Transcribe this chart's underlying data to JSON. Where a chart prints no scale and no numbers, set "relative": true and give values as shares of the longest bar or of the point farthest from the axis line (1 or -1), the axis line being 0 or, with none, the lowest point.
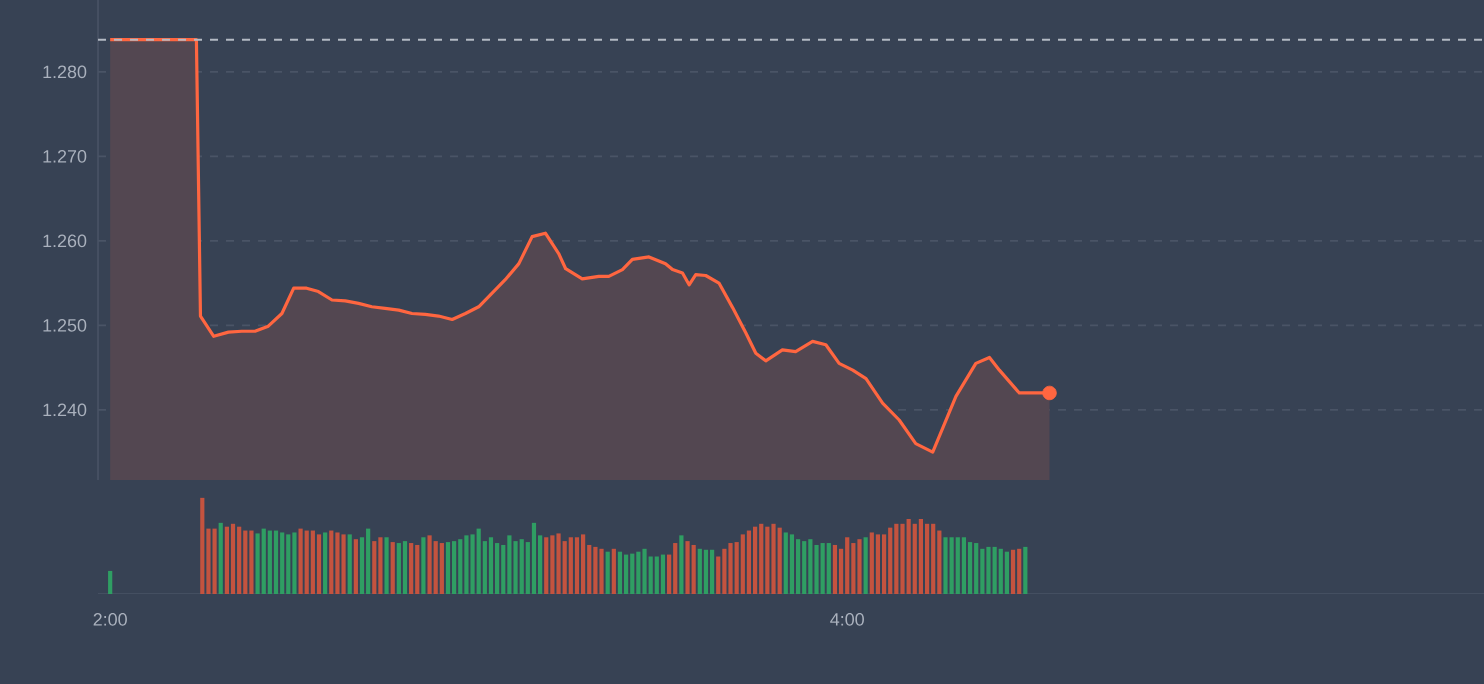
{
  "chart_data": [
    {
      "type": "line",
      "xlim": [
        1.967,
        5.728
      ],
      "ylim": [
        1.2317,
        1.2885
      ],
      "yticks": [
        {
          "value": 1.24,
          "label": "1.240"
        },
        {
          "value": 1.25,
          "label": "1.250"
        },
        {
          "value": 1.26,
          "label": "1.260"
        },
        {
          "value": 1.27,
          "label": "1.270"
        },
        {
          "value": 1.28,
          "label": "1.280"
        }
      ],
      "grid": "y",
      "tick_labels": "y",
      "ref_lines": [
        {
          "axis": "y",
          "value": 1.2838,
          "color": "#b4bac4",
          "line_style": "dashed"
        }
      ],
      "series": [
        {
          "type": "area",
          "color": "#ff6640",
          "x": [
            2.0,
            2.234,
            2.245,
            2.281,
            2.321,
            2.357,
            2.393,
            2.429,
            2.466,
            2.498,
            2.533,
            2.565,
            2.602,
            2.638,
            2.674,
            2.71,
            2.746,
            2.783,
            2.819,
            2.855,
            2.891,
            2.928,
            2.964,
            3.0,
            3.036,
            3.072,
            3.109,
            3.145,
            3.181,
            3.217,
            3.236,
            3.281,
            3.326,
            3.353,
            3.39,
            3.417,
            3.462,
            3.507,
            3.526,
            3.553,
            3.571,
            3.589,
            3.616,
            3.652,
            3.689,
            3.725,
            3.752,
            3.779,
            3.824,
            3.86,
            3.906,
            3.942,
            3.978,
            4.015,
            4.051,
            4.096,
            4.141,
            4.186,
            4.232,
            4.295,
            4.349,
            4.386,
            4.413,
            4.467,
            4.549
          ],
          "values": [
            1.2838,
            1.2838,
            1.2511,
            1.2487,
            1.2492,
            1.2493,
            1.2493,
            1.2499,
            1.2514,
            1.2544,
            1.2544,
            1.254,
            1.253,
            1.2529,
            1.2526,
            1.2522,
            1.252,
            1.2518,
            1.2514,
            1.2513,
            1.2511,
            1.2507,
            1.2514,
            1.2522,
            1.2538,
            1.2554,
            1.2573,
            1.2605,
            1.2609,
            1.2585,
            1.2567,
            1.2555,
            1.2558,
            1.2558,
            1.2566,
            1.2578,
            1.2581,
            1.2573,
            1.2566,
            1.2562,
            1.2548,
            1.256,
            1.2559,
            1.255,
            1.2521,
            1.2491,
            1.2467,
            1.2458,
            1.2471,
            1.2469,
            1.2481,
            1.2477,
            1.2455,
            1.2447,
            1.2437,
            1.2408,
            1.2388,
            1.236,
            1.235,
            1.2416,
            1.2455,
            1.2462,
            1.2447,
            1.242,
            1.242
          ]
        },
        {
          "type": "scatter",
          "color": "#ff6640",
          "x": [
            4.549
          ],
          "values": [
            1.242
          ]
        }
      ]
    },
    {
      "type": "bar",
      "relative": true,
      "xlim": [
        1.967,
        5.728
      ],
      "xticks": [
        {
          "value": 2,
          "label": "2:00"
        },
        {
          "value": 4,
          "label": "4:00"
        }
      ],
      "tick_labels": "x",
      "x": [
        2.0,
        2.25,
        2.2667,
        2.2833,
        2.3,
        2.3167,
        2.3333,
        2.35,
        2.3667,
        2.3833,
        2.4,
        2.4167,
        2.4333,
        2.45,
        2.4667,
        2.4833,
        2.5,
        2.5167,
        2.5333,
        2.55,
        2.5667,
        2.5833,
        2.6,
        2.6167,
        2.6333,
        2.65,
        2.6667,
        2.6833,
        2.7,
        2.7167,
        2.7333,
        2.75,
        2.7667,
        2.7833,
        2.8,
        2.8167,
        2.8333,
        2.85,
        2.8667,
        2.8833,
        2.9,
        2.9167,
        2.9333,
        2.95,
        2.9667,
        2.9833,
        3.0,
        3.0167,
        3.0333,
        3.05,
        3.0667,
        3.0833,
        3.1,
        3.1167,
        3.1333,
        3.15,
        3.1667,
        3.1833,
        3.2,
        3.2167,
        3.2333,
        3.25,
        3.2667,
        3.2833,
        3.3,
        3.3167,
        3.3333,
        3.35,
        3.3667,
        3.3833,
        3.4,
        3.4167,
        3.4333,
        3.45,
        3.4667,
        3.4833,
        3.5,
        3.5167,
        3.5333,
        3.55,
        3.5667,
        3.5833,
        3.6,
        3.6167,
        3.6333,
        3.65,
        3.6667,
        3.6833,
        3.7,
        3.7167,
        3.7333,
        3.75,
        3.7667,
        3.7833,
        3.8,
        3.8167,
        3.8333,
        3.85,
        3.8667,
        3.8833,
        3.9,
        3.9167,
        3.9333,
        3.95,
        3.9667,
        3.9833,
        4.0,
        4.0167,
        4.0333,
        4.05,
        4.0667,
        4.0833,
        4.1,
        4.1167,
        4.1333,
        4.15,
        4.1667,
        4.1833,
        4.2,
        4.2167,
        4.2333,
        4.25,
        4.2667,
        4.2833,
        4.3,
        4.3167,
        4.3333,
        4.35,
        4.3667,
        4.3833,
        4.4,
        4.4167,
        4.4333,
        4.45,
        4.4667,
        4.4833
      ],
      "values": [
        0.24,
        1.0,
        0.68,
        0.68,
        0.74,
        0.7,
        0.73,
        0.7,
        0.66,
        0.66,
        0.63,
        0.68,
        0.66,
        0.66,
        0.64,
        0.62,
        0.64,
        0.68,
        0.66,
        0.66,
        0.62,
        0.64,
        0.66,
        0.64,
        0.62,
        0.62,
        0.57,
        0.59,
        0.68,
        0.55,
        0.59,
        0.59,
        0.54,
        0.53,
        0.55,
        0.53,
        0.51,
        0.59,
        0.61,
        0.55,
        0.53,
        0.54,
        0.55,
        0.57,
        0.61,
        0.62,
        0.68,
        0.55,
        0.59,
        0.53,
        0.51,
        0.61,
        0.55,
        0.57,
        0.54,
        0.74,
        0.61,
        0.59,
        0.61,
        0.63,
        0.55,
        0.59,
        0.59,
        0.62,
        0.51,
        0.49,
        0.47,
        0.44,
        0.47,
        0.44,
        0.41,
        0.42,
        0.44,
        0.47,
        0.39,
        0.39,
        0.41,
        0.41,
        0.53,
        0.61,
        0.55,
        0.51,
        0.47,
        0.46,
        0.46,
        0.39,
        0.47,
        0.53,
        0.54,
        0.62,
        0.66,
        0.7,
        0.73,
        0.7,
        0.73,
        0.69,
        0.64,
        0.62,
        0.57,
        0.55,
        0.57,
        0.51,
        0.53,
        0.53,
        0.51,
        0.47,
        0.59,
        0.53,
        0.57,
        0.59,
        0.64,
        0.62,
        0.62,
        0.69,
        0.73,
        0.73,
        0.78,
        0.73,
        0.78,
        0.73,
        0.73,
        0.66,
        0.59,
        0.59,
        0.59,
        0.59,
        0.54,
        0.53,
        0.47,
        0.49,
        0.49,
        0.47,
        0.44,
        0.46,
        0.47,
        0.49
      ],
      "colors": [
        "#2f9e63",
        "#c4533f",
        "#c4533f",
        "#c4533f",
        "#2f9e63",
        "#c4533f",
        "#c4533f",
        "#c4533f",
        "#c4533f",
        "#c4533f",
        "#2f9e63",
        "#2f9e63",
        "#2f9e63",
        "#2f9e63",
        "#2f9e63",
        "#2f9e63",
        "#2f9e63",
        "#c4533f",
        "#c4533f",
        "#c4533f",
        "#c4533f",
        "#2f9e63",
        "#c4533f",
        "#c4533f",
        "#c4533f",
        "#2f9e63",
        "#c4533f",
        "#2f9e63",
        "#2f9e63",
        "#c4533f",
        "#c4533f",
        "#2f9e63",
        "#c4533f",
        "#2f9e63",
        "#2f9e63",
        "#c4533f",
        "#c4533f",
        "#2f9e63",
        "#c4533f",
        "#c4533f",
        "#c4533f",
        "#2f9e63",
        "#2f9e63",
        "#2f9e63",
        "#2f9e63",
        "#2f9e63",
        "#2f9e63",
        "#2f9e63",
        "#2f9e63",
        "#2f9e63",
        "#2f9e63",
        "#2f9e63",
        "#2f9e63",
        "#2f9e63",
        "#2f9e63",
        "#2f9e63",
        "#2f9e63",
        "#c4533f",
        "#c4533f",
        "#c4533f",
        "#c4533f",
        "#c4533f",
        "#c4533f",
        "#c4533f",
        "#c4533f",
        "#c4533f",
        "#c4533f",
        "#2f9e63",
        "#c4533f",
        "#2f9e63",
        "#2f9e63",
        "#2f9e63",
        "#2f9e63",
        "#2f9e63",
        "#2f9e63",
        "#2f9e63",
        "#2f9e63",
        "#c4533f",
        "#c4533f",
        "#2f9e63",
        "#c4533f",
        "#c4533f",
        "#2f9e63",
        "#2f9e63",
        "#2f9e63",
        "#c4533f",
        "#c4533f",
        "#c4533f",
        "#c4533f",
        "#c4533f",
        "#c4533f",
        "#c4533f",
        "#c4533f",
        "#c4533f",
        "#c4533f",
        "#c4533f",
        "#2f9e63",
        "#2f9e63",
        "#2f9e63",
        "#2f9e63",
        "#2f9e63",
        "#2f9e63",
        "#2f9e63",
        "#2f9e63",
        "#c4533f",
        "#c4533f",
        "#c4533f",
        "#c4533f",
        "#c4533f",
        "#2f9e63",
        "#c4533f",
        "#c4533f",
        "#c4533f",
        "#c4533f",
        "#c4533f",
        "#c4533f",
        "#c4533f",
        "#c4533f",
        "#c4533f",
        "#c4533f",
        "#c4533f",
        "#c4533f",
        "#2f9e63",
        "#2f9e63",
        "#2f9e63",
        "#2f9e63",
        "#2f9e63",
        "#2f9e63",
        "#2f9e63",
        "#2f9e63",
        "#2f9e63",
        "#2f9e63",
        "#2f9e63",
        "#c4533f",
        "#c4533f",
        "#2f9e63"
      ]
    }
  ]
}
